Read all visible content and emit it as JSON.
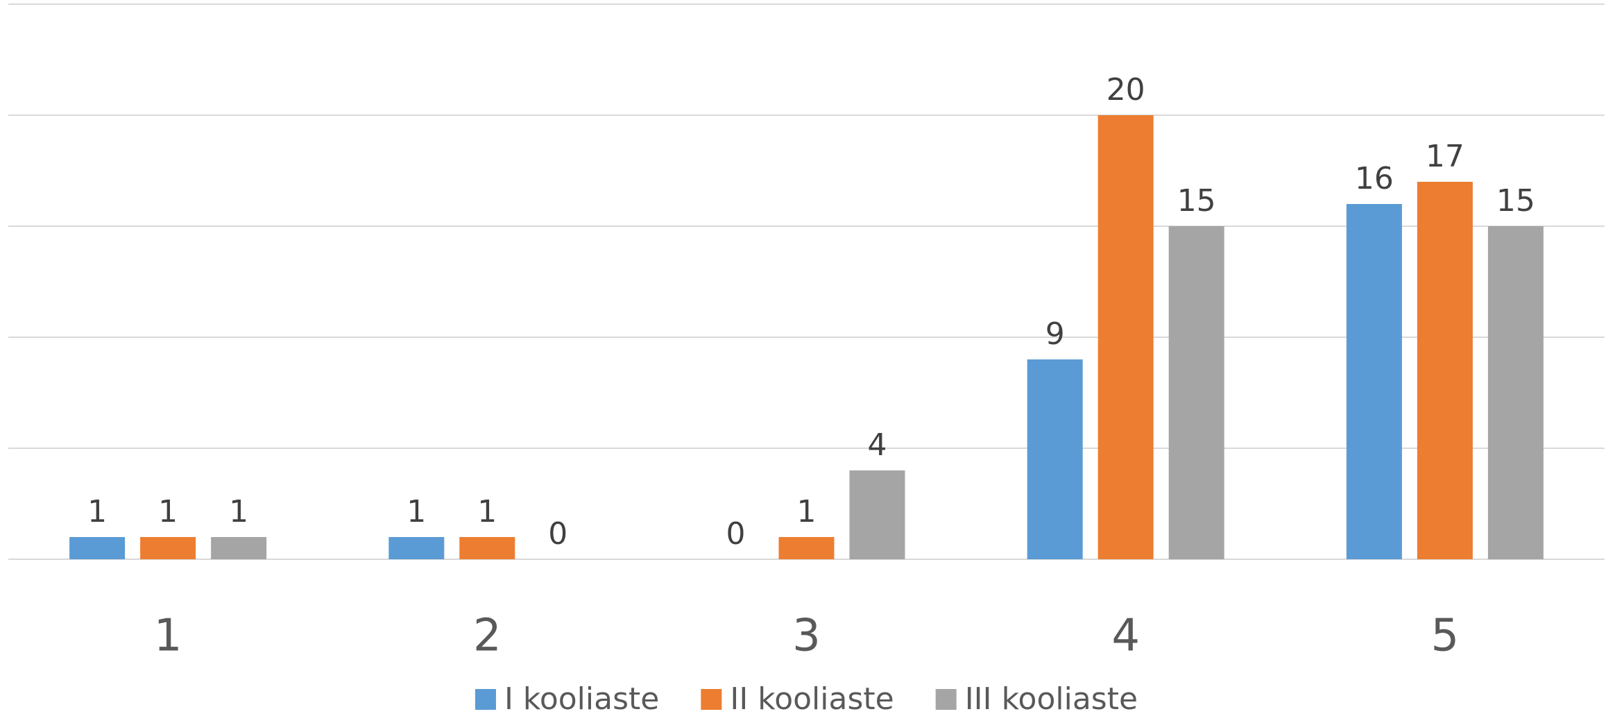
{
  "chart_data": {
    "type": "bar",
    "categories": [
      "1",
      "2",
      "3",
      "4",
      "5"
    ],
    "series": [
      {
        "name": "I kooliaste",
        "color": "#5b9bd5",
        "values": [
          1,
          1,
          0,
          9,
          16
        ]
      },
      {
        "name": "II kooliaste",
        "color": "#ed7d31",
        "values": [
          1,
          1,
          1,
          20,
          17
        ]
      },
      {
        "name": "III kooliaste",
        "color": "#a5a5a5",
        "values": [
          1,
          0,
          4,
          15,
          15
        ]
      }
    ],
    "ylim": [
      0,
      25
    ],
    "yticks": [
      0,
      5,
      10,
      15,
      20,
      25
    ],
    "grid": true,
    "legend": "bottom"
  }
}
